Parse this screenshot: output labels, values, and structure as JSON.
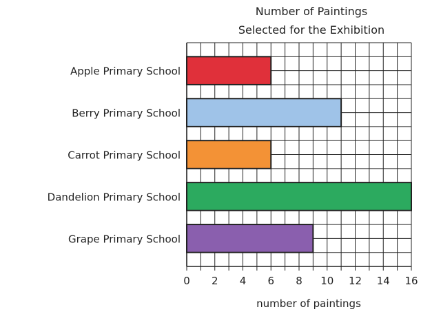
{
  "chart_data": {
    "type": "bar",
    "orientation": "horizontal",
    "title_lines": [
      "Number of Paintings",
      "Selected for the Exhibition"
    ],
    "xlabel": "number of paintings",
    "ylabel": "",
    "categories": [
      "Apple Primary School",
      "Berry Primary School",
      "Carrot Primary School",
      "Dandelion Primary School",
      "Grape Primary School"
    ],
    "values": [
      6,
      11,
      6,
      16,
      9
    ],
    "colors": [
      "#e0303a",
      "#9fc3e8",
      "#f39236",
      "#2caa5f",
      "#8a5fae"
    ],
    "xlim": [
      0,
      16
    ],
    "xticks": [
      "0",
      "2",
      "4",
      "6",
      "8",
      "10",
      "12",
      "14",
      "16"
    ],
    "grid": true
  }
}
